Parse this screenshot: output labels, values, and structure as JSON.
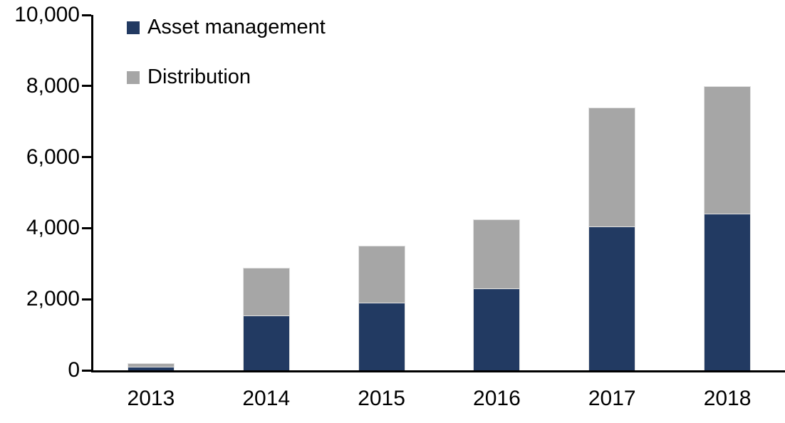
{
  "chart_data": {
    "type": "bar",
    "stacked": true,
    "title": "",
    "xlabel": "",
    "ylabel": "",
    "categories": [
      "2013",
      "2014",
      "2015",
      "2016",
      "2017",
      "2018"
    ],
    "series": [
      {
        "name": "Asset management",
        "color": "#223A62",
        "values": [
          100,
          1550,
          1900,
          2300,
          4050,
          4400
        ]
      },
      {
        "name": "Distribution",
        "color": "#A6A6A6",
        "values": [
          100,
          1330,
          1600,
          1950,
          3350,
          3600
        ]
      }
    ],
    "totals": [
      200,
      2880,
      3500,
      4250,
      7400,
      8000
    ],
    "ylim": [
      0,
      10000
    ],
    "yticks": [
      0,
      2000,
      4000,
      6000,
      8000,
      10000
    ],
    "ytick_labels": [
      "0",
      "2,000",
      "4,000",
      "6,000",
      "8,000",
      "10,000"
    ],
    "legend_position": "top-left",
    "grid": false,
    "axis_color": "#000000",
    "background_color": "#ffffff"
  }
}
